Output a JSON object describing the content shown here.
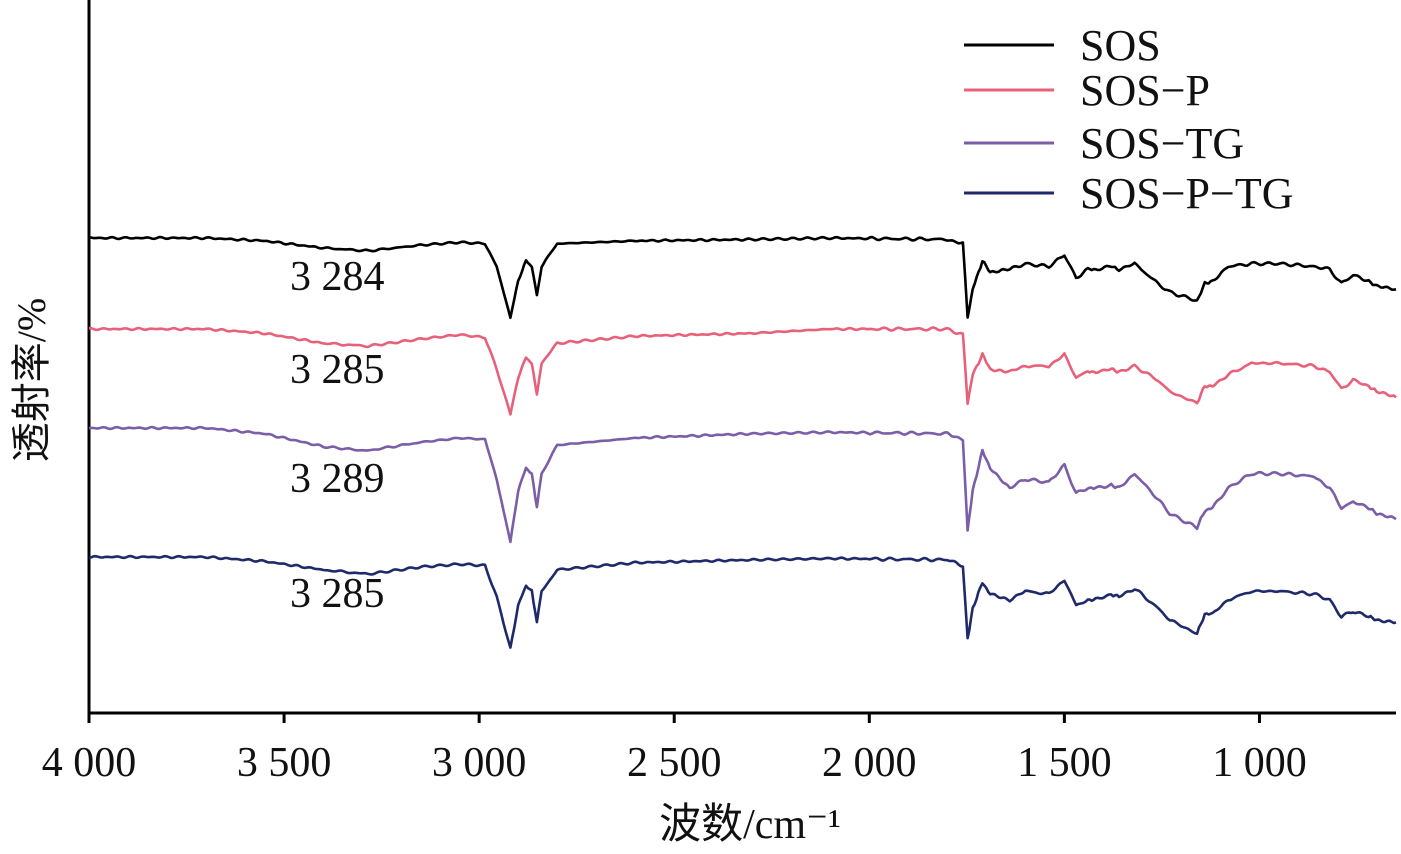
{
  "chart_data": {
    "type": "line",
    "xlabel": "波数/cm⁻¹",
    "ylabel": "透射率/%",
    "xlim": [
      4000,
      650
    ],
    "x_ticks": [
      4000,
      3500,
      3000,
      2500,
      2000,
      1500,
      1000
    ],
    "x_tick_labels": [
      "4 000",
      "3 500",
      "3 000",
      "2 500",
      "2 000",
      "1 500",
      "1 000"
    ],
    "y_ticks_shown": false,
    "legend_position": "top-right",
    "series": [
      {
        "name": "SOS",
        "color": "#000000",
        "annotation": "3 284",
        "offset": 0,
        "points": [
          [
            4000,
            0
          ],
          [
            3700,
            0
          ],
          [
            3550,
            -1
          ],
          [
            3400,
            -3.5
          ],
          [
            3284,
            -4.5
          ],
          [
            3150,
            -2.5
          ],
          [
            3050,
            -1.5
          ],
          [
            2985,
            -2
          ],
          [
            2955,
            -10
          ],
          [
            2920,
            -28
          ],
          [
            2900,
            -15
          ],
          [
            2880,
            -8
          ],
          [
            2865,
            -10
          ],
          [
            2852,
            -20
          ],
          [
            2840,
            -10
          ],
          [
            2800,
            -2
          ],
          [
            2600,
            -1
          ],
          [
            2300,
            -0.5
          ],
          [
            2100,
            0
          ],
          [
            1800,
            -0.5
          ],
          [
            1760,
            -2
          ],
          [
            1748,
            -28
          ],
          [
            1735,
            -18
          ],
          [
            1710,
            -8
          ],
          [
            1690,
            -12
          ],
          [
            1640,
            -11
          ],
          [
            1600,
            -9
          ],
          [
            1540,
            -10
          ],
          [
            1500,
            -6
          ],
          [
            1470,
            -14
          ],
          [
            1440,
            -11
          ],
          [
            1420,
            -11
          ],
          [
            1380,
            -10
          ],
          [
            1360,
            -11
          ],
          [
            1320,
            -9
          ],
          [
            1260,
            -16
          ],
          [
            1230,
            -19
          ],
          [
            1160,
            -22
          ],
          [
            1140,
            -16
          ],
          [
            1120,
            -15
          ],
          [
            1080,
            -10
          ],
          [
            1020,
            -9
          ],
          [
            950,
            -9
          ],
          [
            860,
            -10
          ],
          [
            820,
            -11
          ],
          [
            790,
            -16
          ],
          [
            760,
            -13
          ],
          [
            720,
            -15
          ],
          [
            700,
            -17
          ],
          [
            650,
            -18
          ]
        ]
      },
      {
        "name": "SOS−P",
        "color": "#e8617a",
        "annotation": "3 285",
        "offset": 0,
        "points": [
          [
            4000,
            0
          ],
          [
            3700,
            0
          ],
          [
            3550,
            -1.5
          ],
          [
            3400,
            -5
          ],
          [
            3285,
            -6
          ],
          [
            3150,
            -3.5
          ],
          [
            3050,
            -2
          ],
          [
            2985,
            -3
          ],
          [
            2955,
            -14
          ],
          [
            2920,
            -30
          ],
          [
            2900,
            -17
          ],
          [
            2880,
            -10
          ],
          [
            2865,
            -12
          ],
          [
            2852,
            -23
          ],
          [
            2840,
            -12
          ],
          [
            2800,
            -5
          ],
          [
            2600,
            -2.5
          ],
          [
            2300,
            -1.5
          ],
          [
            2100,
            0
          ],
          [
            1800,
            0
          ],
          [
            1760,
            -2
          ],
          [
            1748,
            -26
          ],
          [
            1735,
            -16
          ],
          [
            1710,
            -9
          ],
          [
            1690,
            -14
          ],
          [
            1640,
            -15
          ],
          [
            1600,
            -13
          ],
          [
            1540,
            -13
          ],
          [
            1500,
            -9
          ],
          [
            1470,
            -17
          ],
          [
            1440,
            -15
          ],
          [
            1420,
            -15
          ],
          [
            1380,
            -14
          ],
          [
            1360,
            -15
          ],
          [
            1320,
            -13
          ],
          [
            1260,
            -18
          ],
          [
            1230,
            -22
          ],
          [
            1160,
            -26
          ],
          [
            1140,
            -20
          ],
          [
            1120,
            -20
          ],
          [
            1080,
            -16
          ],
          [
            1020,
            -12
          ],
          [
            950,
            -12
          ],
          [
            860,
            -13
          ],
          [
            820,
            -15
          ],
          [
            790,
            -21
          ],
          [
            760,
            -18
          ],
          [
            720,
            -20
          ],
          [
            700,
            -22
          ],
          [
            650,
            -24
          ]
        ]
      },
      {
        "name": "SOS−TG",
        "color": "#7b5ea7",
        "annotation": "3 289",
        "offset": 0,
        "points": [
          [
            4000,
            0
          ],
          [
            3700,
            0
          ],
          [
            3550,
            -2
          ],
          [
            3400,
            -6.5
          ],
          [
            3289,
            -8
          ],
          [
            3150,
            -5
          ],
          [
            3050,
            -3.5
          ],
          [
            2985,
            -4
          ],
          [
            2955,
            -18
          ],
          [
            2920,
            -40
          ],
          [
            2900,
            -22
          ],
          [
            2880,
            -14
          ],
          [
            2865,
            -16
          ],
          [
            2852,
            -28
          ],
          [
            2840,
            -16
          ],
          [
            2800,
            -6
          ],
          [
            2600,
            -3.5
          ],
          [
            2300,
            -2
          ],
          [
            2100,
            -1.5
          ],
          [
            1800,
            -2
          ],
          [
            1760,
            -4
          ],
          [
            1748,
            -36
          ],
          [
            1735,
            -22
          ],
          [
            1710,
            -8
          ],
          [
            1690,
            -14
          ],
          [
            1640,
            -21
          ],
          [
            1600,
            -18
          ],
          [
            1540,
            -19
          ],
          [
            1500,
            -13
          ],
          [
            1470,
            -23
          ],
          [
            1440,
            -21
          ],
          [
            1420,
            -21
          ],
          [
            1380,
            -20
          ],
          [
            1360,
            -21
          ],
          [
            1320,
            -16
          ],
          [
            1260,
            -25
          ],
          [
            1230,
            -30
          ],
          [
            1160,
            -35
          ],
          [
            1140,
            -29
          ],
          [
            1120,
            -28
          ],
          [
            1080,
            -21
          ],
          [
            1020,
            -16
          ],
          [
            950,
            -16
          ],
          [
            860,
            -17
          ],
          [
            820,
            -21
          ],
          [
            790,
            -28
          ],
          [
            760,
            -26
          ],
          [
            720,
            -28
          ],
          [
            700,
            -30
          ],
          [
            650,
            -32
          ]
        ]
      },
      {
        "name": "SOS−P−TG",
        "color": "#1f2a6b",
        "annotation": "3 285",
        "offset": 0,
        "points": [
          [
            4000,
            0
          ],
          [
            3700,
            0
          ],
          [
            3550,
            -1.5
          ],
          [
            3400,
            -4.5
          ],
          [
            3285,
            -6
          ],
          [
            3150,
            -3.5
          ],
          [
            3050,
            -2.5
          ],
          [
            2985,
            -3
          ],
          [
            2955,
            -14
          ],
          [
            2920,
            -32
          ],
          [
            2900,
            -17
          ],
          [
            2880,
            -10
          ],
          [
            2865,
            -12
          ],
          [
            2852,
            -23
          ],
          [
            2840,
            -12
          ],
          [
            2800,
            -4.5
          ],
          [
            2600,
            -2
          ],
          [
            2300,
            -1
          ],
          [
            2100,
            -0.5
          ],
          [
            1800,
            -1
          ],
          [
            1760,
            -3
          ],
          [
            1748,
            -29
          ],
          [
            1735,
            -18
          ],
          [
            1710,
            -9
          ],
          [
            1690,
            -13
          ],
          [
            1640,
            -15
          ],
          [
            1600,
            -12
          ],
          [
            1540,
            -13
          ],
          [
            1500,
            -8
          ],
          [
            1470,
            -17
          ],
          [
            1440,
            -15
          ],
          [
            1420,
            -15
          ],
          [
            1380,
            -13
          ],
          [
            1360,
            -14
          ],
          [
            1320,
            -11
          ],
          [
            1260,
            -18
          ],
          [
            1230,
            -22
          ],
          [
            1160,
            -27
          ],
          [
            1140,
            -20
          ],
          [
            1120,
            -20
          ],
          [
            1080,
            -15
          ],
          [
            1020,
            -12
          ],
          [
            950,
            -12
          ],
          [
            860,
            -13
          ],
          [
            820,
            -15
          ],
          [
            790,
            -21
          ],
          [
            760,
            -19
          ],
          [
            720,
            -21
          ],
          [
            700,
            -22
          ],
          [
            650,
            -23
          ]
        ]
      }
    ]
  }
}
